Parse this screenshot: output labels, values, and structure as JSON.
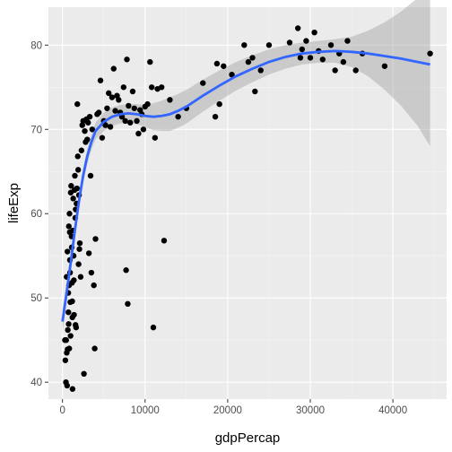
{
  "chart_data": {
    "type": "scatter",
    "xlabel": "gdpPercap",
    "ylabel": "lifeExp",
    "xlim": [
      -1700,
      46500
    ],
    "ylim": [
      38.0,
      84.5
    ],
    "x_ticks": [
      0,
      10000,
      20000,
      30000,
      40000
    ],
    "x_tick_labels": [
      "0",
      "10000",
      "20000",
      "30000",
      "40000"
    ],
    "y_ticks": [
      40,
      50,
      60,
      70,
      80
    ],
    "y_tick_labels": [
      "40",
      "50",
      "60",
      "70",
      "80"
    ],
    "grid": true,
    "legend": "none",
    "points": [
      [
        300,
        45.0
      ],
      [
        350,
        42.6
      ],
      [
        420,
        40.0
      ],
      [
        450,
        45.0
      ],
      [
        500,
        52.5
      ],
      [
        520,
        43.5
      ],
      [
        560,
        39.6
      ],
      [
        600,
        55.5
      ],
      [
        620,
        43.9
      ],
      [
        650,
        46.2
      ],
      [
        700,
        50.6
      ],
      [
        720,
        48.3
      ],
      [
        750,
        46.9
      ],
      [
        770,
        58.5
      ],
      [
        800,
        51.5
      ],
      [
        820,
        44.0
      ],
      [
        850,
        60.0
      ],
      [
        880,
        57.8
      ],
      [
        900,
        54.5
      ],
      [
        920,
        53.0
      ],
      [
        950,
        49.5
      ],
      [
        980,
        45.5
      ],
      [
        1000,
        62.5
      ],
      [
        1050,
        63.3
      ],
      [
        1100,
        57.3
      ],
      [
        1120,
        56.0
      ],
      [
        1150,
        51.8
      ],
      [
        1180,
        49.6
      ],
      [
        1200,
        47.7
      ],
      [
        1220,
        39.2
      ],
      [
        1250,
        58.0
      ],
      [
        1300,
        61.8
      ],
      [
        1350,
        55.0
      ],
      [
        1380,
        52.1
      ],
      [
        1400,
        48.0
      ],
      [
        1450,
        62.8
      ],
      [
        1500,
        64.5
      ],
      [
        1550,
        59.5
      ],
      [
        1580,
        46.8
      ],
      [
        1600,
        60.5
      ],
      [
        1650,
        46.5
      ],
      [
        1700,
        61.2
      ],
      [
        1750,
        63.0
      ],
      [
        1800,
        73.0
      ],
      [
        1850,
        66.8
      ],
      [
        1900,
        65.2
      ],
      [
        1950,
        54.0
      ],
      [
        2000,
        62.2
      ],
      [
        2050,
        55.8
      ],
      [
        2100,
        56.5
      ],
      [
        2200,
        52.5
      ],
      [
        2300,
        67.5
      ],
      [
        2400,
        70.5
      ],
      [
        2500,
        71.0
      ],
      [
        2600,
        41.0
      ],
      [
        2700,
        69.8
      ],
      [
        2800,
        68.5
      ],
      [
        2900,
        71.2
      ],
      [
        3000,
        68.8
      ],
      [
        3100,
        70.8
      ],
      [
        3200,
        55.3
      ],
      [
        3300,
        71.5
      ],
      [
        3400,
        64.5
      ],
      [
        3500,
        53.0
      ],
      [
        3600,
        70.0
      ],
      [
        3800,
        51.5
      ],
      [
        3900,
        44.0
      ],
      [
        4000,
        57.0
      ],
      [
        4200,
        71.8
      ],
      [
        4400,
        72.0
      ],
      [
        4600,
        75.8
      ],
      [
        4800,
        69.0
      ],
      [
        5000,
        71.0
      ],
      [
        5200,
        70.5
      ],
      [
        5400,
        72.5
      ],
      [
        5600,
        74.3
      ],
      [
        5800,
        70.3
      ],
      [
        6000,
        73.8
      ],
      [
        6200,
        77.2
      ],
      [
        6400,
        72.2
      ],
      [
        6600,
        74.0
      ],
      [
        6800,
        73.5
      ],
      [
        7000,
        72.0
      ],
      [
        7200,
        71.5
      ],
      [
        7400,
        75.0
      ],
      [
        7600,
        71.0
      ],
      [
        7700,
        53.3
      ],
      [
        7800,
        78.3
      ],
      [
        7900,
        49.3
      ],
      [
        8000,
        72.8
      ],
      [
        8200,
        70.8
      ],
      [
        8500,
        74.5
      ],
      [
        8700,
        72.5
      ],
      [
        9000,
        71.0
      ],
      [
        9200,
        69.5
      ],
      [
        9400,
        72.3
      ],
      [
        9600,
        71.8
      ],
      [
        9800,
        70.0
      ],
      [
        10000,
        72.7
      ],
      [
        10300,
        73.0
      ],
      [
        10600,
        78.0
      ],
      [
        10800,
        75.0
      ],
      [
        11000,
        46.5
      ],
      [
        11200,
        69.0
      ],
      [
        11500,
        74.8
      ],
      [
        12000,
        75.0
      ],
      [
        12300,
        56.8
      ],
      [
        13000,
        73.5
      ],
      [
        14000,
        71.5
      ],
      [
        15000,
        72.5
      ],
      [
        17000,
        75.5
      ],
      [
        18500,
        71.5
      ],
      [
        18700,
        77.8
      ],
      [
        19000,
        73.0
      ],
      [
        19500,
        77.5
      ],
      [
        20500,
        76.5
      ],
      [
        22000,
        80.0
      ],
      [
        22500,
        78.0
      ],
      [
        23000,
        78.5
      ],
      [
        23300,
        74.5
      ],
      [
        24000,
        77.0
      ],
      [
        25000,
        80.0
      ],
      [
        27500,
        80.3
      ],
      [
        28500,
        82.0
      ],
      [
        28800,
        78.5
      ],
      [
        29000,
        79.5
      ],
      [
        29500,
        80.5
      ],
      [
        30000,
        78.5
      ],
      [
        30500,
        81.5
      ],
      [
        31000,
        79.3
      ],
      [
        31500,
        78.3
      ],
      [
        32500,
        80.0
      ],
      [
        33000,
        77.0
      ],
      [
        33500,
        79.0
      ],
      [
        34000,
        78.0
      ],
      [
        34500,
        80.5
      ],
      [
        35500,
        77.0
      ],
      [
        36300,
        79.0
      ],
      [
        39000,
        77.5
      ],
      [
        44500,
        79.0
      ]
    ],
    "smooth": {
      "method": "loess",
      "color": "#3366ff",
      "fill": "#999999",
      "fit": [
        [
          0,
          47.2
        ],
        [
          500,
          50.6
        ],
        [
          1000,
          54.2
        ],
        [
          1500,
          58.0
        ],
        [
          2000,
          61.5
        ],
        [
          2500,
          64.5
        ],
        [
          3000,
          66.8
        ],
        [
          3500,
          68.5
        ],
        [
          4000,
          69.8
        ],
        [
          5000,
          70.9
        ],
        [
          6000,
          71.5
        ],
        [
          7000,
          71.8
        ],
        [
          8000,
          71.9
        ],
        [
          9000,
          71.8
        ],
        [
          10000,
          71.6
        ],
        [
          11000,
          71.5
        ],
        [
          12000,
          71.6
        ],
        [
          13000,
          71.8
        ],
        [
          14000,
          72.2
        ],
        [
          15000,
          72.7
        ],
        [
          17000,
          74.0
        ],
        [
          19000,
          75.2
        ],
        [
          21000,
          76.3
        ],
        [
          23000,
          77.2
        ],
        [
          25000,
          78.0
        ],
        [
          27000,
          78.6
        ],
        [
          29000,
          79.0
        ],
        [
          31000,
          79.2
        ],
        [
          33000,
          79.3
        ],
        [
          35000,
          79.2
        ],
        [
          37000,
          79.0
        ],
        [
          39000,
          78.7
        ],
        [
          41000,
          78.4
        ],
        [
          43000,
          78.0
        ],
        [
          44500,
          77.7
        ]
      ],
      "ci_upper": [
        [
          0,
          48.6
        ],
        [
          500,
          51.8
        ],
        [
          1000,
          55.3
        ],
        [
          1500,
          59.0
        ],
        [
          2000,
          62.5
        ],
        [
          2500,
          65.4
        ],
        [
          3000,
          67.7
        ],
        [
          3500,
          69.4
        ],
        [
          4000,
          70.8
        ],
        [
          5000,
          72.0
        ],
        [
          6000,
          72.6
        ],
        [
          7000,
          72.9
        ],
        [
          8000,
          73.0
        ],
        [
          9000,
          73.0
        ],
        [
          10000,
          72.9
        ],
        [
          11000,
          73.1
        ],
        [
          12000,
          73.4
        ],
        [
          13000,
          73.8
        ],
        [
          14000,
          74.2
        ],
        [
          15000,
          74.7
        ],
        [
          17000,
          75.9
        ],
        [
          19000,
          77.0
        ],
        [
          21000,
          78.0
        ],
        [
          23000,
          78.8
        ],
        [
          25000,
          79.5
        ],
        [
          27000,
          80.0
        ],
        [
          29000,
          80.3
        ],
        [
          31000,
          80.5
        ],
        [
          33000,
          80.7
        ],
        [
          35000,
          81.0
        ],
        [
          37000,
          81.7
        ],
        [
          39000,
          82.7
        ],
        [
          41000,
          84.0
        ],
        [
          43000,
          85.6
        ],
        [
          44500,
          87.0
        ]
      ],
      "ci_lower": [
        [
          0,
          45.8
        ],
        [
          500,
          49.4
        ],
        [
          1000,
          53.1
        ],
        [
          1500,
          57.0
        ],
        [
          2000,
          60.5
        ],
        [
          2500,
          63.6
        ],
        [
          3000,
          65.9
        ],
        [
          3500,
          67.6
        ],
        [
          4000,
          68.8
        ],
        [
          5000,
          69.8
        ],
        [
          6000,
          70.4
        ],
        [
          7000,
          70.7
        ],
        [
          8000,
          70.8
        ],
        [
          9000,
          70.6
        ],
        [
          10000,
          70.3
        ],
        [
          11000,
          69.9
        ],
        [
          12000,
          69.8
        ],
        [
          13000,
          69.8
        ],
        [
          14000,
          70.2
        ],
        [
          15000,
          70.7
        ],
        [
          17000,
          72.1
        ],
        [
          19000,
          73.4
        ],
        [
          21000,
          74.6
        ],
        [
          23000,
          75.6
        ],
        [
          25000,
          76.5
        ],
        [
          27000,
          77.2
        ],
        [
          29000,
          77.7
        ],
        [
          31000,
          77.9
        ],
        [
          33000,
          77.9
        ],
        [
          35000,
          77.4
        ],
        [
          37000,
          76.3
        ],
        [
          39000,
          74.7
        ],
        [
          41000,
          72.8
        ],
        [
          43000,
          70.4
        ],
        [
          44500,
          68.0
        ]
      ]
    },
    "colors": {
      "panel": "#ebebeb",
      "grid_major": "#ffffff",
      "grid_minor": "#f5f5f5",
      "point": "#000000"
    }
  }
}
